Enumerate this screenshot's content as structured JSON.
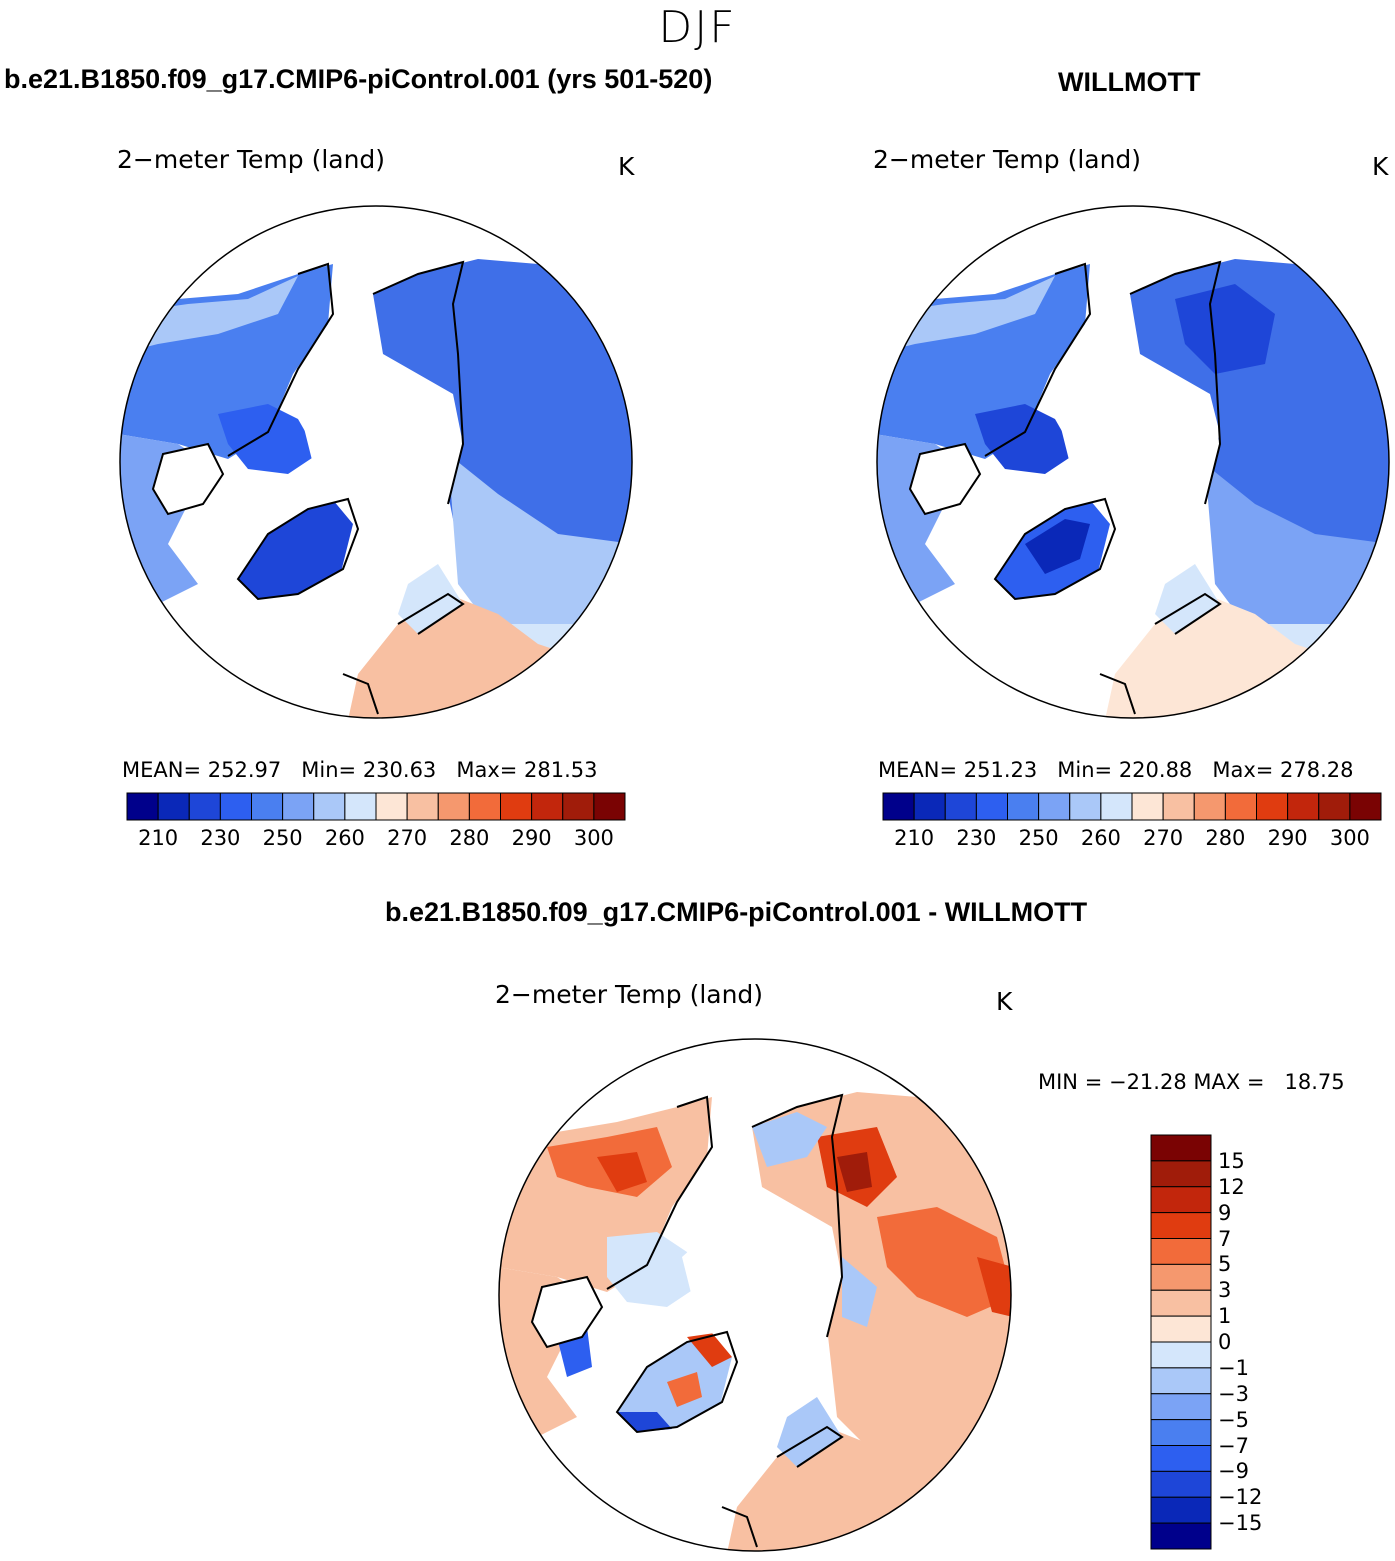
{
  "title": "DJF",
  "panels": {
    "left": {
      "case_title": "b.e21.B1850.f09_g17.CMIP6-piControl.001 (yrs 501-520)",
      "plot_title": "2−meter Temp (land)",
      "units": "K",
      "stats": {
        "mean_label": "MEAN=",
        "mean": "252.97",
        "min_label": "Min=",
        "min": "230.63",
        "max_label": "Max=",
        "max": "281.53"
      }
    },
    "right": {
      "case_title": "WILLMOTT",
      "plot_title": "2−meter Temp (land)",
      "units": "K",
      "stats": {
        "mean_label": "MEAN=",
        "mean": "251.23",
        "min_label": "Min=",
        "min": "220.88",
        "max_label": "Max=",
        "max": "278.28"
      }
    },
    "diff": {
      "case_title": "b.e21.B1850.f09_g17.CMIP6-piControl.001 - WILLMOTT",
      "plot_title": "2−meter Temp (land)",
      "units": "K",
      "minmax": "MIN = −21.28 MAX =   18.75"
    }
  },
  "abs_colorbar": {
    "colors": [
      "#00008b",
      "#0a28b8",
      "#1e46d8",
      "#2d5ff0",
      "#4a7ff0",
      "#7ba3f5",
      "#aac8f8",
      "#d4e6fb",
      "#fde6d6",
      "#f8c0a2",
      "#f5986e",
      "#f26b3a",
      "#e03c10",
      "#c2260c",
      "#a01c0a",
      "#7a0303"
    ],
    "tick_labels": [
      "210",
      "230",
      "250",
      "260",
      "270",
      "280",
      "290",
      "300"
    ]
  },
  "diff_colorbar": {
    "colors": [
      "#7a0303",
      "#a01c0a",
      "#c2260c",
      "#e03c10",
      "#f26b3a",
      "#f5986e",
      "#f8c0a2",
      "#fde6d6",
      "#d4e6fb",
      "#aac8f8",
      "#7ba3f5",
      "#4a7ff0",
      "#2d5ff0",
      "#1e46d8",
      "#0a28b8",
      "#00008b"
    ],
    "tick_labels": [
      "15",
      "12",
      "9",
      "7",
      "5",
      "3",
      "1",
      "0",
      "−1",
      "−3",
      "−5",
      "−7",
      "−9",
      "−12",
      "−15"
    ]
  }
}
